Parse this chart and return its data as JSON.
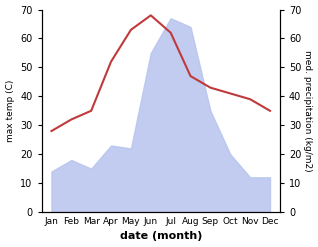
{
  "months": [
    "Jan",
    "Feb",
    "Mar",
    "Apr",
    "May",
    "Jun",
    "Jul",
    "Aug",
    "Sep",
    "Oct",
    "Nov",
    "Dec"
  ],
  "temperature": [
    28,
    32,
    35,
    52,
    63,
    68,
    62,
    47,
    43,
    41,
    39,
    35
  ],
  "precipitation": [
    14,
    18,
    15,
    23,
    22,
    55,
    67,
    64,
    35,
    20,
    12,
    12
  ],
  "temp_color": "#c0393b",
  "precip_fill_color": "#b8c4ee",
  "precip_fill_alpha": 0.85,
  "ylim_left": [
    0,
    70
  ],
  "ylim_right": [
    0,
    70
  ],
  "xlabel": "date (month)",
  "ylabel_left": "max temp (C)",
  "ylabel_right": "med. precipitation (kg/m2)",
  "tick_interval": 10,
  "figsize": [
    3.18,
    2.47
  ],
  "dpi": 100
}
